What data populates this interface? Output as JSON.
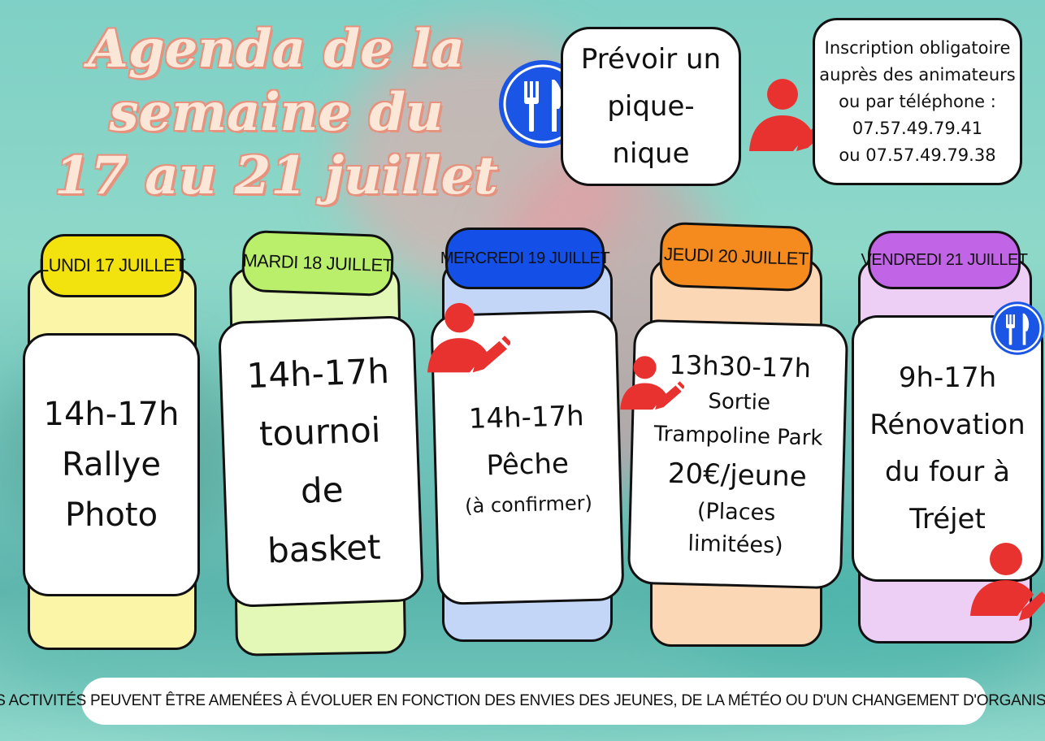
{
  "title": {
    "line1": "Agenda de la",
    "line2": "semaine du",
    "line3": "17 au 21 juillet"
  },
  "picnic": {
    "line1": "Prévoir un",
    "line2": "pique-",
    "line3": "nique",
    "icon": "fork-knife-icon"
  },
  "registration": {
    "line1": "Inscription obligatoire",
    "line2": "auprès des animateurs",
    "line3": "ou par téléphone :",
    "phone1": "07.57.49.79.41",
    "phone2": "ou 07.57.49.79.38",
    "icon": "person-edit-icon"
  },
  "days": [
    {
      "label": "LUNDI 17 JUILLET",
      "tag_color": "#f2e20e",
      "back_color": "#fbf5a8",
      "lines": [
        "14h-17h",
        "Rallye",
        "Photo"
      ]
    },
    {
      "label": "MARDI 18 JUILLET",
      "tag_color": "#b9ef6b",
      "back_color": "#e3f7b7",
      "lines": [
        "14h-17h",
        "tournoi",
        "de",
        "basket"
      ]
    },
    {
      "label": "MERCREDI 19 JUILLET",
      "tag_color": "#1450e8",
      "back_color": "#c3d6f7",
      "lines": [
        "14h-17h",
        "Pêche",
        "(à confirmer)"
      ]
    },
    {
      "label": "JEUDI 20 JUILLET",
      "tag_color": "#f58a1e",
      "back_color": "#fbd7b5",
      "lines": [
        "13h30-17h",
        "Sortie",
        "Trampoline Park",
        "20€/jeune",
        "(Places",
        "limitées)"
      ]
    },
    {
      "label": "VENDREDI 21 JUILLET",
      "tag_color": "#c264e6",
      "back_color": "#edcff6",
      "lines": [
        "9h-17h",
        "Rénovation",
        "du four à",
        "Tréjet"
      ]
    }
  ],
  "footer_note": "LES ACTIVITÉS PEUVENT ÊTRE AMENÉES À ÉVOLUER EN FONCTION DES ENVIES DES JEUNES, DE LA MÉTÉO OU D'UN CHANGEMENT D'ORGANISATION"
}
